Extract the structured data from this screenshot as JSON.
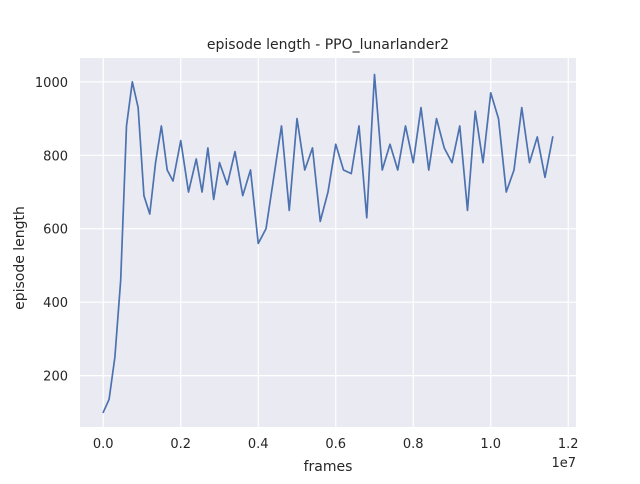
{
  "chart_data": {
    "type": "line",
    "title": "episode length - PPO_lunarlander2",
    "xlabel": "frames",
    "ylabel": "episode length",
    "x_offset_label": "1e7",
    "xlim": [
      -0.06,
      1.22
    ],
    "ylim": [
      60,
      1065
    ],
    "x_ticks": [
      {
        "value": 0.0,
        "label": "0.0"
      },
      {
        "value": 0.2,
        "label": "0.2"
      },
      {
        "value": 0.4,
        "label": "0.4"
      },
      {
        "value": 0.6,
        "label": "0.6"
      },
      {
        "value": 0.8,
        "label": "0.8"
      },
      {
        "value": 1.0,
        "label": "1.0"
      },
      {
        "value": 1.2,
        "label": "1.2"
      }
    ],
    "y_ticks": [
      {
        "value": 200,
        "label": "200"
      },
      {
        "value": 400,
        "label": "400"
      },
      {
        "value": 600,
        "label": "600"
      },
      {
        "value": 800,
        "label": "800"
      },
      {
        "value": 1000,
        "label": "1000"
      }
    ],
    "grid": true,
    "background_color": "#eaeaf2",
    "grid_color": "#ffffff",
    "line_color": "#4c72b0",
    "series": [
      {
        "x": [
          0.0,
          0.015,
          0.03,
          0.045,
          0.06,
          0.075,
          0.09,
          0.105,
          0.12,
          0.135,
          0.15,
          0.165,
          0.18,
          0.2,
          0.22,
          0.24,
          0.255,
          0.27,
          0.285,
          0.3,
          0.32,
          0.34,
          0.36,
          0.38,
          0.4,
          0.42,
          0.44,
          0.46,
          0.48,
          0.5,
          0.52,
          0.54,
          0.56,
          0.58,
          0.6,
          0.62,
          0.64,
          0.66,
          0.68,
          0.7,
          0.72,
          0.74,
          0.76,
          0.78,
          0.8,
          0.82,
          0.84,
          0.86,
          0.88,
          0.9,
          0.92,
          0.94,
          0.96,
          0.98,
          1.0,
          1.02,
          1.04,
          1.06,
          1.08,
          1.1,
          1.12,
          1.14,
          1.16
        ],
        "y": [
          100,
          135,
          250,
          460,
          880,
          1000,
          930,
          690,
          640,
          780,
          880,
          760,
          730,
          840,
          700,
          790,
          700,
          820,
          680,
          780,
          720,
          810,
          690,
          760,
          560,
          600,
          740,
          880,
          650,
          900,
          760,
          820,
          620,
          700,
          830,
          760,
          750,
          880,
          630,
          1020,
          760,
          830,
          760,
          880,
          780,
          930,
          760,
          900,
          820,
          780,
          880,
          650,
          920,
          780,
          970,
          900,
          700,
          760,
          930,
          780,
          850,
          740,
          850
        ]
      }
    ]
  }
}
